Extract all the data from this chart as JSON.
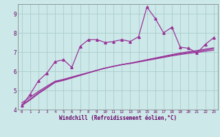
{
  "xlabel": "Windchill (Refroidissement éolien,°C)",
  "background_color": "#cce8e8",
  "grid_color": "#aacccc",
  "line_color": "#993399",
  "x_data": [
    0,
    1,
    2,
    3,
    4,
    5,
    6,
    7,
    8,
    9,
    10,
    11,
    12,
    13,
    14,
    15,
    16,
    17,
    18,
    19,
    20,
    21,
    22,
    23
  ],
  "y_main": [
    4.2,
    4.8,
    5.5,
    5.9,
    6.5,
    6.6,
    6.2,
    7.3,
    7.65,
    7.65,
    7.5,
    7.55,
    7.65,
    7.55,
    7.8,
    9.35,
    8.75,
    8.0,
    8.3,
    7.25,
    7.2,
    6.95,
    7.4,
    7.75
  ],
  "y_reg1": [
    4.35,
    4.65,
    4.95,
    5.22,
    5.48,
    5.58,
    5.7,
    5.82,
    5.93,
    6.05,
    6.16,
    6.25,
    6.34,
    6.4,
    6.48,
    6.56,
    6.64,
    6.72,
    6.8,
    6.87,
    6.93,
    6.98,
    7.04,
    7.1
  ],
  "y_reg2": [
    4.25,
    4.55,
    4.88,
    5.16,
    5.45,
    5.55,
    5.68,
    5.8,
    5.93,
    6.05,
    6.17,
    6.26,
    6.35,
    6.42,
    6.5,
    6.59,
    6.67,
    6.76,
    6.84,
    6.91,
    6.98,
    7.03,
    7.1,
    7.17
  ],
  "y_reg3": [
    4.2,
    4.5,
    4.83,
    5.12,
    5.42,
    5.52,
    5.65,
    5.78,
    5.91,
    6.04,
    6.16,
    6.26,
    6.35,
    6.42,
    6.51,
    6.6,
    6.69,
    6.78,
    6.87,
    6.95,
    7.02,
    7.08,
    7.15,
    7.22
  ],
  "ylim": [
    4.0,
    9.5
  ],
  "xlim": [
    -0.5,
    23.5
  ],
  "yticks": [
    4,
    5,
    6,
    7,
    8,
    9
  ],
  "xticks": [
    0,
    1,
    2,
    3,
    4,
    5,
    6,
    7,
    8,
    9,
    10,
    11,
    12,
    13,
    14,
    15,
    16,
    17,
    18,
    19,
    20,
    21,
    22,
    23
  ]
}
